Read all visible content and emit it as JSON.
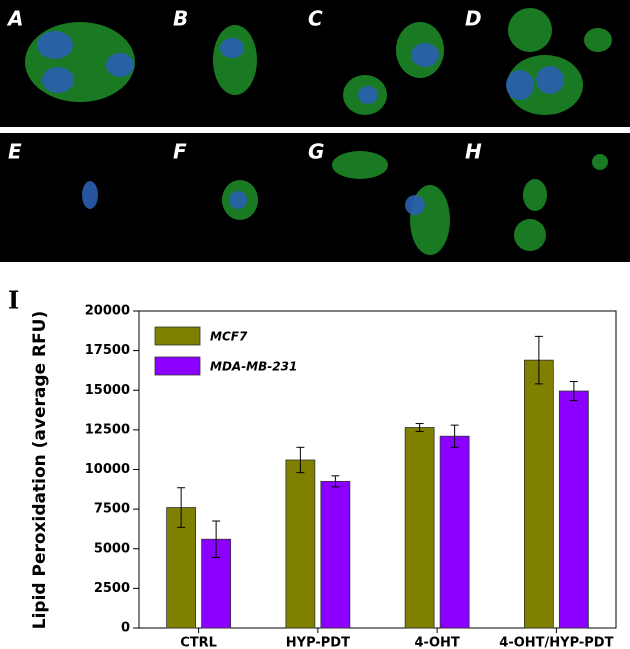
{
  "figure": {
    "panels": [
      "A",
      "B",
      "C",
      "D",
      "E",
      "F",
      "G",
      "H"
    ],
    "chart_label": "I"
  },
  "chart_data": {
    "type": "bar",
    "y_label": "Lipid Peroxidation (average RFU)",
    "categories": [
      "CTRL",
      "HYP-PDT",
      "4-OHT",
      "4-OHT/HYP-PDT"
    ],
    "series": [
      {
        "name": "MCF7",
        "color": "#808000",
        "values": [
          7600,
          10600,
          12650,
          16900
        ],
        "errors": [
          1250,
          800,
          250,
          1500
        ]
      },
      {
        "name": "MDA-MB-231",
        "color": "#8b00ff",
        "values": [
          5600,
          9250,
          12100,
          14950
        ],
        "errors": [
          1150,
          350,
          700,
          600
        ]
      }
    ],
    "ylim": [
      0,
      20000
    ],
    "yticks": [
      0,
      2500,
      5000,
      7500,
      10000,
      12500,
      15000,
      17500,
      20000
    ],
    "legend": "upper-left",
    "grid": false
  }
}
